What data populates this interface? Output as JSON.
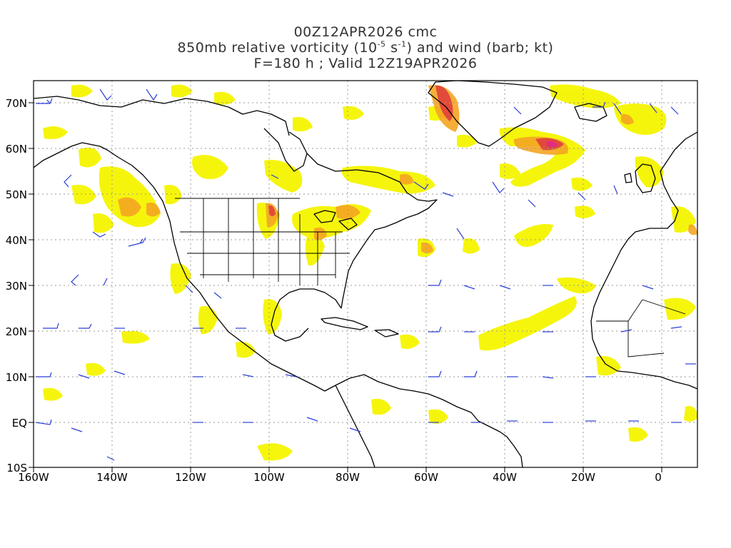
{
  "title": {
    "line1": "00Z12APR2026 cmc",
    "line2_pre": "850mb relative vorticity (10",
    "line2_exp1": "-5",
    "line2_mid": " s",
    "line2_exp2": "-1",
    "line2_post": ") and wind (barb; kt)",
    "line3": "F=180 h ; Valid 12Z19APR2026"
  },
  "axes": {
    "lon_labels": [
      "160W",
      "140W",
      "120W",
      "100W",
      "80W",
      "60W",
      "40W",
      "20W",
      "0"
    ],
    "lat_labels": [
      "70N",
      "60N",
      "50N",
      "40N",
      "30N",
      "20N",
      "10N",
      "EQ",
      "10S"
    ]
  },
  "colors": {
    "vort_yellow": "#f5f500",
    "vort_lightyellow": "#fafa9a",
    "vort_orange": "#f5a623",
    "vort_red": "#e0403a",
    "vort_magenta": "#e0208a",
    "barb": "#2b3fd6",
    "coast": "#000000",
    "grid": "#999999"
  }
}
